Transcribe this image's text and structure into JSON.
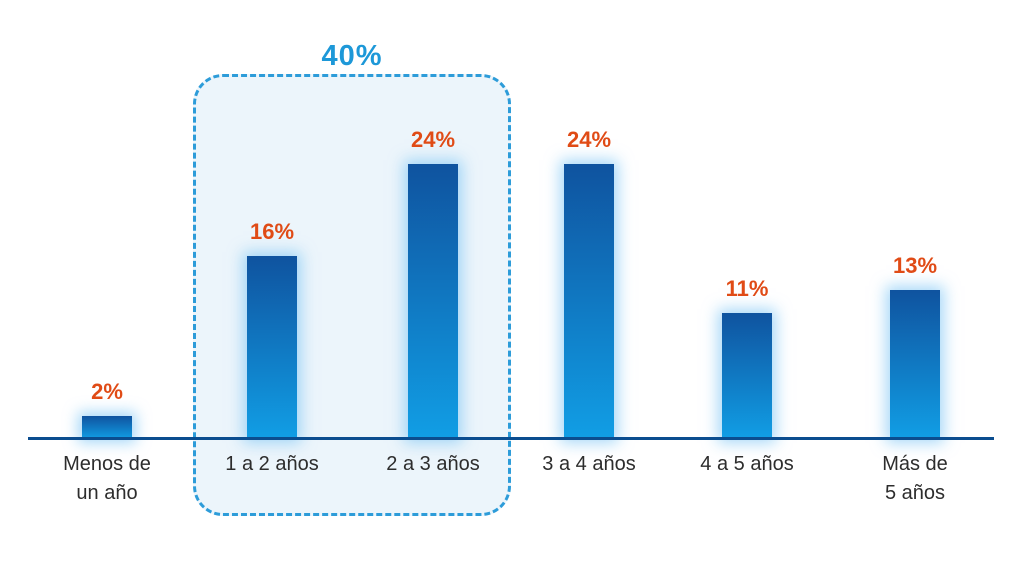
{
  "chart_data": {
    "type": "bar",
    "categories": [
      "Menos de\nun año",
      "1 a 2 años",
      "2 a 3 años",
      "3 a 4 años",
      "4 a 5 años",
      "Más de\n5 años"
    ],
    "values": [
      2,
      16,
      24,
      24,
      11,
      13
    ],
    "value_labels": [
      "2%",
      "16%",
      "24%",
      "24%",
      "11%",
      "13%"
    ],
    "title": "",
    "xlabel": "",
    "ylabel": "",
    "ylim": [
      0,
      27
    ],
    "grid": false,
    "legend": false,
    "annotation": {
      "label": "40%",
      "applies_to": [
        "1 a 2 años",
        "2 a 3 años"
      ]
    },
    "colors": {
      "background": "#ffffff",
      "bar_gradient_top": "#0f539f",
      "bar_gradient_bottom": "#119ee5",
      "bar_glow": "#9ed4f5",
      "value_label": "#e04b16",
      "category_label": "#2d2d2d",
      "baseline": "#0b4d8f",
      "annotation_label": "#1d98d8",
      "annotation_border": "#2d9cd9",
      "annotation_fill": "#ecf5fb"
    }
  }
}
